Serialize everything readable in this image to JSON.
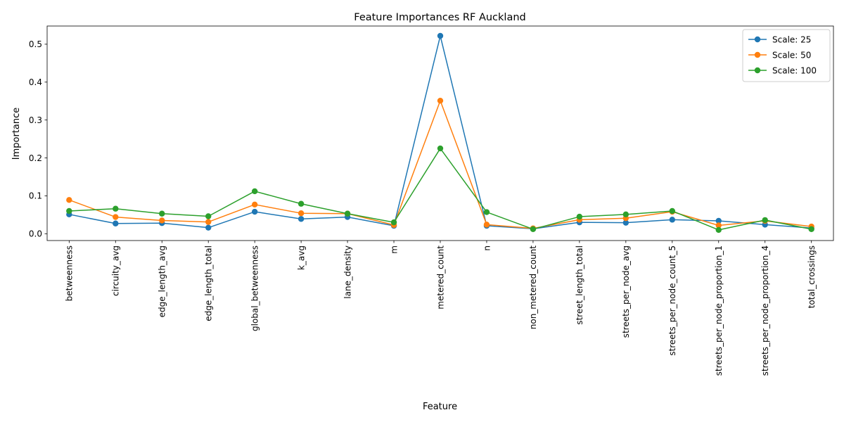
{
  "chart_data": {
    "type": "line",
    "title": "Feature Importances RF Auckland",
    "xlabel": "Feature",
    "ylabel": "Importance",
    "ylim": [
      -0.018,
      0.548
    ],
    "yticks": [
      "0.0",
      "0.1",
      "0.2",
      "0.3",
      "0.4",
      "0.5"
    ],
    "grid": false,
    "legend_position": "top-right",
    "categories": [
      "betweenness",
      "circuity_avg",
      "edge_length_avg",
      "edge_length_total",
      "global_betweenness",
      "k_avg",
      "lane_density",
      "m",
      "metered_count",
      "n",
      "non_metered_count",
      "street_length_total",
      "streets_per_node_avg",
      "streets_per_node_count_5",
      "streets_per_node_proportion_1",
      "streets_per_node_proportion_4",
      "total_crossings"
    ],
    "series": [
      {
        "name": "Scale: 25",
        "color": "#1f77b4",
        "values": [
          0.051,
          0.027,
          0.028,
          0.016,
          0.058,
          0.039,
          0.044,
          0.021,
          0.522,
          0.021,
          0.013,
          0.03,
          0.029,
          0.037,
          0.034,
          0.024,
          0.015
        ]
      },
      {
        "name": "Scale: 50",
        "color": "#ff7f0e",
        "values": [
          0.089,
          0.044,
          0.035,
          0.031,
          0.077,
          0.054,
          0.053,
          0.023,
          0.351,
          0.024,
          0.014,
          0.037,
          0.041,
          0.058,
          0.022,
          0.034,
          0.019
        ]
      },
      {
        "name": "Scale: 100",
        "color": "#2ca02c",
        "values": [
          0.06,
          0.066,
          0.053,
          0.046,
          0.112,
          0.079,
          0.053,
          0.03,
          0.225,
          0.057,
          0.012,
          0.045,
          0.051,
          0.06,
          0.01,
          0.036,
          0.012
        ]
      }
    ]
  }
}
